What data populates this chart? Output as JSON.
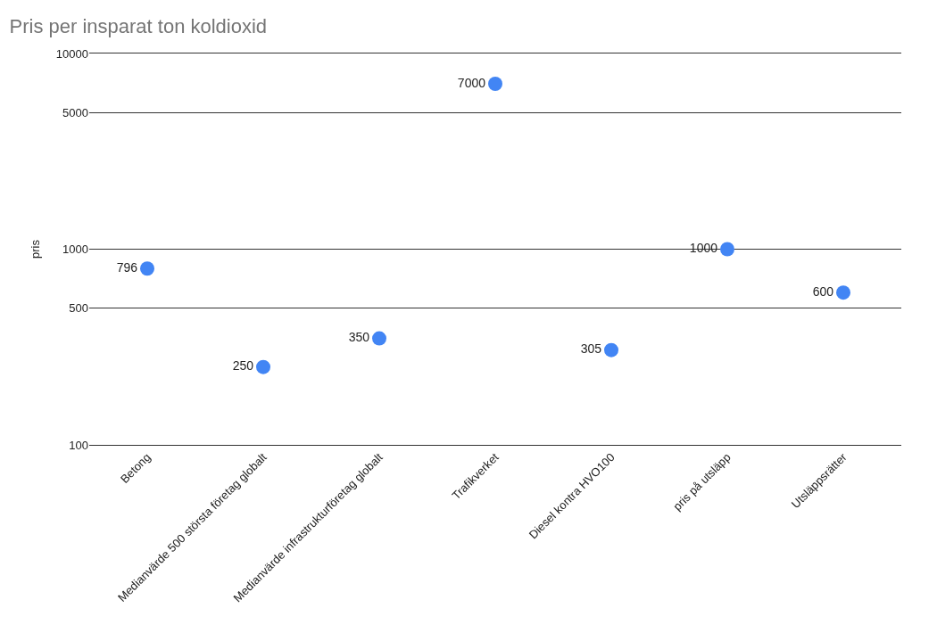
{
  "chart_data": {
    "type": "scatter",
    "title": "Pris per insparat ton koldioxid",
    "ylabel": "pris",
    "categories": [
      "Betong",
      "Medianvärde 500 största företag globalt",
      "Medianvärde infrastrukturföretag globalt",
      "Trafikverket",
      "Diesel kontra HVO100",
      "pris på utsläpp",
      "Utsläppsrätter"
    ],
    "values": [
      796,
      250,
      350,
      7000,
      305,
      1000,
      600
    ],
    "color": "#4285f4",
    "marker": "circle",
    "data_labels": true,
    "log": true,
    "ylim": [
      100,
      10000
    ],
    "yticks": [
      100,
      500,
      1000,
      5000,
      10000
    ],
    "grid": "y"
  }
}
